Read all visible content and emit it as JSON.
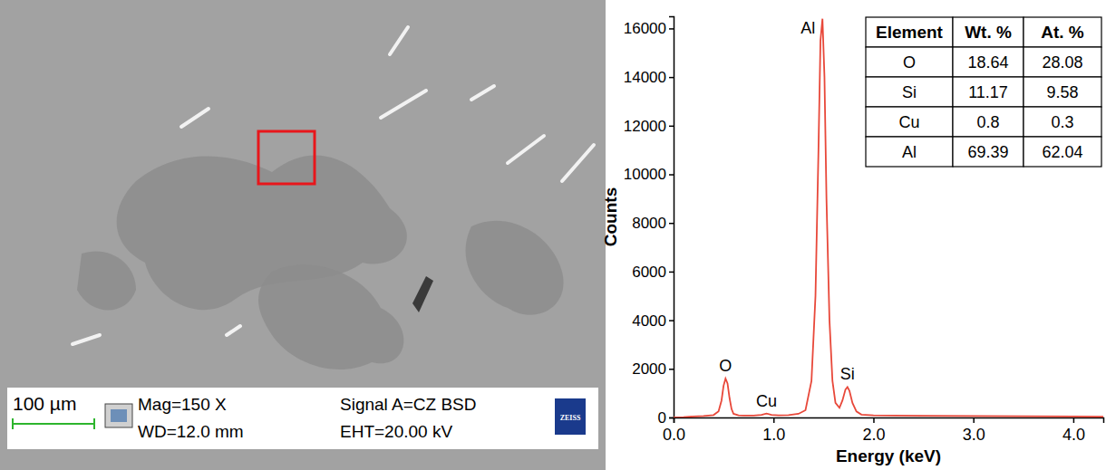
{
  "sem_image": {
    "scale_bar": "100 µm",
    "mag": "Mag=150 X",
    "wd": "WD=12.0 mm",
    "signal": "Signal A=CZ BSD",
    "eht": "EHT=20.00 kV",
    "logo": "ZEISS"
  },
  "chart_data": {
    "type": "line",
    "x_label": "Energy (keV)",
    "y_label": "Counts",
    "color": "#e8483a",
    "x": [
      0.0,
      0.1,
      0.2,
      0.3,
      0.4,
      0.45,
      0.48,
      0.5,
      0.52,
      0.54,
      0.56,
      0.58,
      0.6,
      0.65,
      0.7,
      0.8,
      0.88,
      0.93,
      0.98,
      1.05,
      1.15,
      1.25,
      1.32,
      1.38,
      1.42,
      1.45,
      1.47,
      1.49,
      1.51,
      1.53,
      1.56,
      1.59,
      1.62,
      1.66,
      1.69,
      1.72,
      1.74,
      1.76,
      1.79,
      1.83,
      1.88,
      2.0,
      2.2,
      2.5,
      3.0,
      3.5,
      4.0,
      4.3
    ],
    "values": [
      0,
      10,
      40,
      60,
      100,
      250,
      700,
      1300,
      1600,
      1400,
      800,
      350,
      150,
      90,
      80,
      80,
      110,
      160,
      110,
      90,
      100,
      150,
      300,
      1500,
      5000,
      11000,
      15500,
      16400,
      14000,
      9000,
      4000,
      1500,
      600,
      400,
      700,
      1150,
      1250,
      1100,
      600,
      250,
      120,
      90,
      80,
      70,
      60,
      50,
      40,
      35
    ],
    "xlim": [
      0,
      4.3
    ],
    "xticks": [
      {
        "value": 0,
        "label": "0.0"
      },
      {
        "value": 1,
        "label": "1.0"
      },
      {
        "value": 2,
        "label": "2.0"
      },
      {
        "value": 3,
        "label": "3.0"
      },
      {
        "value": 4,
        "label": "4.0"
      }
    ],
    "ylim": [
      0,
      16500
    ],
    "yticks": [
      0,
      2000,
      4000,
      6000,
      8000,
      10000,
      12000,
      14000,
      16000
    ],
    "grid": false,
    "annotations": [
      {
        "text": "O",
        "x": 0.52,
        "y": 1600
      },
      {
        "text": "Cu",
        "x": 0.93,
        "y": 160
      },
      {
        "text": "Al",
        "x": 1.49,
        "y": 16400
      },
      {
        "text": "Si",
        "x": 1.74,
        "y": 1250
      }
    ],
    "table": {
      "header": [
        "Element",
        "Wt. %",
        "At. %"
      ],
      "rows": [
        [
          "O",
          18.64,
          28.08
        ],
        [
          "Si",
          11.17,
          9.58
        ],
        [
          "Cu",
          0.8,
          0.3
        ],
        [
          "Al",
          69.39,
          62.04
        ]
      ]
    }
  }
}
